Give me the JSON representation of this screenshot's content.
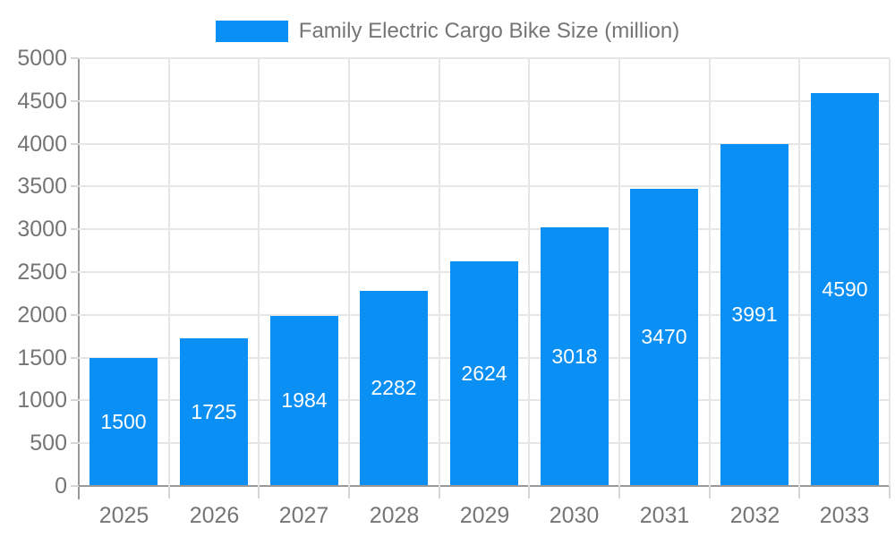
{
  "legend": {
    "label": "Family Electric Cargo Bike Size (million)"
  },
  "chart_data": {
    "type": "bar",
    "title": "Family Electric Cargo Bike Size (million)",
    "categories": [
      "2025",
      "2026",
      "2027",
      "2028",
      "2029",
      "2030",
      "2031",
      "2032",
      "2033"
    ],
    "values": [
      1500,
      1725,
      1984,
      2282,
      2624,
      3018,
      3470,
      3991,
      4590
    ],
    "xlabel": "",
    "ylabel": "",
    "ylim": [
      0,
      5000
    ],
    "ytick_step": 500,
    "grid": true,
    "legend_position": "top-center",
    "value_label_position": "inside-center",
    "colors": {
      "bar": "#0a8ff5",
      "value_label": "#ffffff",
      "axis_line": "#999999",
      "grid_line": "#e6e6e6",
      "tick_line": "#d6d6d6",
      "text": "#757575",
      "background": "#ffffff"
    }
  }
}
